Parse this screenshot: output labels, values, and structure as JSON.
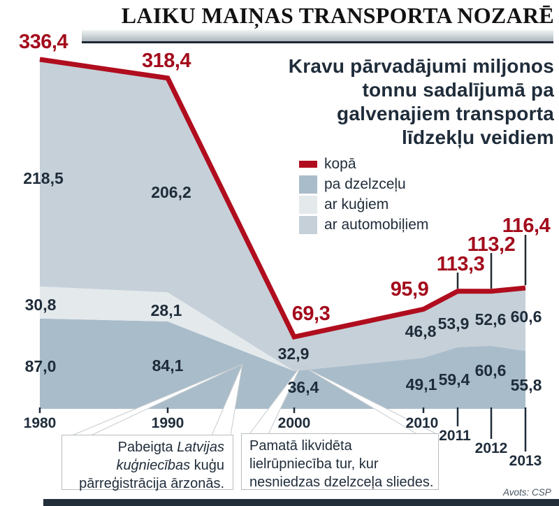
{
  "header": {
    "masthead": "LAIKU MAIŅAS TRANSPORTA NOZARĒ"
  },
  "subtitle_lines": [
    "Kravu pārvadājumi miljonos",
    "tonnu sadalījumā pa",
    "galvenajiem transporta",
    "līdzekļu veidiem"
  ],
  "legend": {
    "items": [
      {
        "label": "kopā",
        "type": "line"
      },
      {
        "label": "pa dzelzceļu",
        "type": "area"
      },
      {
        "label": "ar kuģiem",
        "type": "area"
      },
      {
        "label": "ar automobiļiem",
        "type": "area"
      }
    ]
  },
  "chart_data": {
    "type": "area",
    "stacked": true,
    "x": [
      1980,
      1990,
      2000,
      2010,
      2011,
      2012,
      2013
    ],
    "series": [
      {
        "name": "pa dzelzceļu",
        "values": [
          87.0,
          84.1,
          36.4,
          49.1,
          59.4,
          60.6,
          55.8
        ],
        "color": "#a9bcca"
      },
      {
        "name": "ar kuģiem",
        "values": [
          30.8,
          28.1,
          0,
          0,
          0,
          0,
          0
        ],
        "color": "#e4e9ec"
      },
      {
        "name": "ar automobiļiem",
        "values": [
          218.5,
          206.2,
          32.9,
          46.8,
          53.9,
          52.6,
          60.6
        ],
        "color": "#c5d0d9"
      }
    ],
    "total_line": {
      "name": "kopā",
      "values": [
        336.4,
        318.4,
        69.3,
        95.9,
        113.3,
        113.2,
        116.4
      ],
      "color": "#b00d1e"
    },
    "ylim": [
      0,
      336.4
    ],
    "grid": false,
    "legend_position": "upper-right",
    "title": "Kravu pārvadājumi miljonos tonnu sadalījumā pa galvenajiem transporta līdzekļu veidiem"
  },
  "labels": {
    "totals": [
      "336,4",
      "318,4",
      "69,3",
      "95,9",
      "113,3",
      "113,2",
      "116,4"
    ],
    "rail": [
      "87,0",
      "84,1",
      "36,4",
      "49,1",
      "59,4",
      "60,6",
      "55,8"
    ],
    "ships": [
      "30,8",
      "28,1"
    ],
    "road": [
      "218,5",
      "206,2",
      "32,9",
      "46,8",
      "53,9",
      "52,6",
      "60,6"
    ],
    "years": [
      "1980",
      "1990",
      "2000",
      "2010",
      "2011",
      "2012",
      "2013"
    ]
  },
  "callouts": {
    "box1": {
      "line1_normal": "Pabeigta ",
      "line1_italic": "Latvijas",
      "line2_italic": "kuģniecības",
      "line2_normal": " kuģu",
      "line3": "pārreģistrācija ārzonās."
    },
    "box2": {
      "line1": "Pamatā likvidēta",
      "line2": "lielrūpniecība tur, kur",
      "line3": "nesniedzas dzelzceļa sliedes."
    }
  },
  "source": "Avots: CSP",
  "colors": {
    "accent_red": "#b00d1e",
    "red_label": "#a30b1c",
    "navy_text": "#1f2c3a",
    "rail_fill": "#a9bcca",
    "ships_fill": "#e4e9ec",
    "road_fill": "#c5d0d9",
    "strip_dark": "#1c2733"
  }
}
